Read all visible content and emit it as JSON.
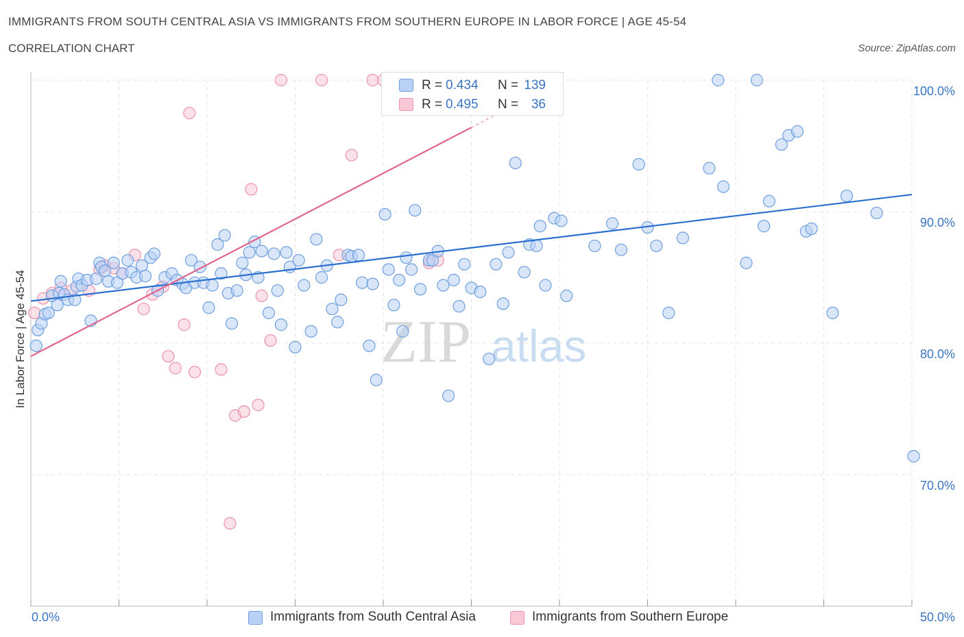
{
  "header": {
    "title": "IMMIGRANTS FROM SOUTH CENTRAL ASIA VS IMMIGRANTS FROM SOUTHERN EUROPE IN LABOR FORCE | AGE 45-54",
    "subtitle": "CORRELATION CHART",
    "source": "Source: ZipAtlas.com"
  },
  "colors": {
    "blue_fill": "#b9d1f5",
    "blue_stroke": "#6d9fe0",
    "blue_line": "#2a6fcf",
    "pink_fill": "#f8c8d6",
    "pink_stroke": "#ec92ad",
    "pink_line": "#e0648d",
    "axis_text": "#3a75c4",
    "grid": "#e3e3e3"
  },
  "legend_stats": {
    "blue": {
      "r_label": "R =",
      "r_value": "0.434",
      "n_label": "N =",
      "n_value": "139"
    },
    "pink": {
      "r_label": "R =",
      "r_value": "0.495",
      "n_label": "N =",
      "n_value": "36"
    }
  },
  "watermark": {
    "zip": "ZIP",
    "atlas": "atlas"
  },
  "chart_data": {
    "type": "scatter",
    "title": "IMMIGRANTS FROM SOUTH CENTRAL ASIA VS IMMIGRANTS FROM SOUTHERN EUROPE IN LABOR FORCE | AGE 45-54",
    "xlabel": "",
    "ylabel": "In Labor Force | Age 45-54",
    "xlim": [
      0,
      50
    ],
    "ylim": [
      60,
      100
    ],
    "x_ticks": [
      "0.0%",
      "50.0%"
    ],
    "y_ticks": [
      {
        "value": 70,
        "label": "70.0%"
      },
      {
        "value": 80,
        "label": "80.0%"
      },
      {
        "value": 90,
        "label": "90.0%"
      },
      {
        "value": 100,
        "label": "100.0%"
      }
    ],
    "legend_position": "bottom",
    "series": [
      {
        "name": "Immigrants from South Central Asia",
        "color": "blue",
        "trend": {
          "x0": 0,
          "y0": 83.2,
          "x1": 50,
          "y1": 91.3
        },
        "points": [
          [
            0.3,
            79.8
          ],
          [
            0.4,
            81.0
          ],
          [
            0.6,
            81.5
          ],
          [
            0.8,
            82.2
          ],
          [
            1.0,
            82.3
          ],
          [
            1.2,
            83.6
          ],
          [
            1.5,
            82.9
          ],
          [
            1.6,
            83.8
          ],
          [
            1.7,
            84.7
          ],
          [
            1.9,
            83.7
          ],
          [
            2.1,
            83.3
          ],
          [
            2.5,
            83.3
          ],
          [
            2.6,
            84.3
          ],
          [
            2.7,
            84.9
          ],
          [
            2.9,
            84.4
          ],
          [
            3.2,
            84.8
          ],
          [
            3.4,
            81.7
          ],
          [
            3.7,
            84.9
          ],
          [
            3.9,
            86.1
          ],
          [
            4.0,
            85.8
          ],
          [
            4.2,
            85.5
          ],
          [
            4.4,
            84.7
          ],
          [
            4.7,
            86.1
          ],
          [
            4.9,
            84.6
          ],
          [
            5.2,
            85.3
          ],
          [
            5.5,
            86.3
          ],
          [
            5.7,
            85.4
          ],
          [
            6.0,
            85.0
          ],
          [
            6.3,
            85.9
          ],
          [
            6.5,
            85.1
          ],
          [
            6.8,
            86.5
          ],
          [
            7.0,
            86.8
          ],
          [
            7.2,
            84.0
          ],
          [
            7.6,
            85.0
          ],
          [
            8.0,
            85.3
          ],
          [
            8.3,
            84.8
          ],
          [
            8.6,
            84.5
          ],
          [
            8.8,
            84.2
          ],
          [
            9.1,
            86.3
          ],
          [
            9.3,
            84.6
          ],
          [
            9.6,
            85.8
          ],
          [
            9.8,
            84.6
          ],
          [
            10.1,
            82.7
          ],
          [
            10.3,
            84.4
          ],
          [
            10.6,
            87.5
          ],
          [
            10.8,
            85.3
          ],
          [
            11.0,
            88.2
          ],
          [
            11.2,
            83.8
          ],
          [
            11.4,
            81.5
          ],
          [
            11.7,
            84.0
          ],
          [
            12.0,
            86.1
          ],
          [
            12.2,
            85.2
          ],
          [
            12.4,
            86.9
          ],
          [
            12.7,
            87.7
          ],
          [
            12.9,
            85.0
          ],
          [
            13.1,
            87.0
          ],
          [
            13.5,
            82.3
          ],
          [
            13.8,
            86.8
          ],
          [
            14.0,
            84.0
          ],
          [
            14.2,
            81.4
          ],
          [
            14.5,
            86.9
          ],
          [
            14.7,
            85.8
          ],
          [
            15.0,
            79.7
          ],
          [
            15.2,
            86.3
          ],
          [
            15.5,
            84.4
          ],
          [
            15.9,
            80.9
          ],
          [
            16.2,
            87.9
          ],
          [
            16.5,
            85.0
          ],
          [
            16.8,
            85.9
          ],
          [
            17.1,
            82.6
          ],
          [
            17.4,
            81.6
          ],
          [
            17.6,
            83.3
          ],
          [
            18.0,
            86.7
          ],
          [
            18.2,
            86.6
          ],
          [
            18.6,
            86.7
          ],
          [
            18.8,
            84.6
          ],
          [
            19.2,
            79.8
          ],
          [
            19.4,
            84.5
          ],
          [
            19.6,
            77.2
          ],
          [
            20.1,
            89.8
          ],
          [
            20.3,
            85.6
          ],
          [
            20.6,
            82.9
          ],
          [
            20.9,
            84.8
          ],
          [
            21.1,
            80.9
          ],
          [
            21.3,
            86.5
          ],
          [
            21.6,
            85.6
          ],
          [
            21.8,
            90.1
          ],
          [
            22.1,
            84.1
          ],
          [
            22.6,
            86.3
          ],
          [
            22.8,
            86.3
          ],
          [
            23.1,
            87.0
          ],
          [
            23.4,
            84.4
          ],
          [
            23.7,
            76.0
          ],
          [
            24.0,
            84.8
          ],
          [
            24.3,
            82.8
          ],
          [
            24.6,
            86.0
          ],
          [
            25.0,
            84.2
          ],
          [
            25.5,
            83.9
          ],
          [
            26.0,
            78.8
          ],
          [
            26.4,
            86.0
          ],
          [
            26.8,
            83.0
          ],
          [
            27.1,
            86.9
          ],
          [
            27.5,
            93.7
          ],
          [
            28.0,
            85.4
          ],
          [
            28.3,
            87.5
          ],
          [
            28.7,
            87.4
          ],
          [
            28.9,
            88.9
          ],
          [
            29.2,
            84.4
          ],
          [
            29.7,
            89.5
          ],
          [
            30.1,
            89.3
          ],
          [
            30.4,
            83.6
          ],
          [
            32.0,
            87.4
          ],
          [
            33.0,
            89.1
          ],
          [
            33.5,
            87.1
          ],
          [
            34.5,
            93.6
          ],
          [
            35.0,
            88.8
          ],
          [
            35.5,
            87.4
          ],
          [
            36.2,
            82.3
          ],
          [
            37.0,
            88.0
          ],
          [
            38.5,
            93.3
          ],
          [
            39.0,
            100.0
          ],
          [
            39.3,
            91.9
          ],
          [
            40.6,
            86.1
          ],
          [
            41.2,
            100.0
          ],
          [
            41.6,
            88.9
          ],
          [
            41.9,
            90.8
          ],
          [
            42.6,
            95.1
          ],
          [
            43.0,
            95.8
          ],
          [
            43.5,
            96.1
          ],
          [
            44.0,
            88.5
          ],
          [
            44.3,
            88.7
          ],
          [
            45.5,
            82.3
          ],
          [
            46.3,
            91.2
          ],
          [
            48.0,
            89.9
          ],
          [
            50.1,
            71.4
          ]
        ]
      },
      {
        "name": "Immigrants from Southern Europe",
        "color": "pink",
        "trend": {
          "x0": 0,
          "y0": 79.0,
          "x1": 25,
          "y1": 96.4
        },
        "points": [
          [
            0.2,
            82.3
          ],
          [
            0.7,
            83.4
          ],
          [
            1.2,
            83.8
          ],
          [
            1.7,
            84.2
          ],
          [
            2.3,
            84.0
          ],
          [
            3.3,
            84.0
          ],
          [
            3.9,
            85.6
          ],
          [
            4.2,
            85.9
          ],
          [
            4.7,
            85.7
          ],
          [
            5.2,
            85.3
          ],
          [
            5.9,
            86.7
          ],
          [
            6.4,
            82.6
          ],
          [
            6.9,
            83.7
          ],
          [
            7.5,
            84.3
          ],
          [
            7.8,
            79.0
          ],
          [
            8.2,
            78.1
          ],
          [
            8.7,
            81.4
          ],
          [
            9.0,
            97.5
          ],
          [
            9.3,
            77.8
          ],
          [
            10.8,
            78.0
          ],
          [
            11.3,
            66.3
          ],
          [
            11.6,
            74.5
          ],
          [
            12.1,
            74.8
          ],
          [
            12.5,
            91.7
          ],
          [
            12.9,
            75.3
          ],
          [
            13.1,
            83.6
          ],
          [
            13.6,
            80.2
          ],
          [
            14.2,
            100.0
          ],
          [
            16.5,
            100.0
          ],
          [
            17.5,
            86.7
          ],
          [
            18.2,
            94.3
          ],
          [
            19.4,
            100.0
          ],
          [
            20.0,
            100.0
          ],
          [
            20.5,
            100.0
          ],
          [
            22.6,
            86.1
          ],
          [
            23.1,
            86.3
          ]
        ]
      }
    ]
  },
  "bottom_legend": {
    "blue_label": "Immigrants from South Central Asia",
    "pink_label": "Immigrants from Southern Europe"
  }
}
